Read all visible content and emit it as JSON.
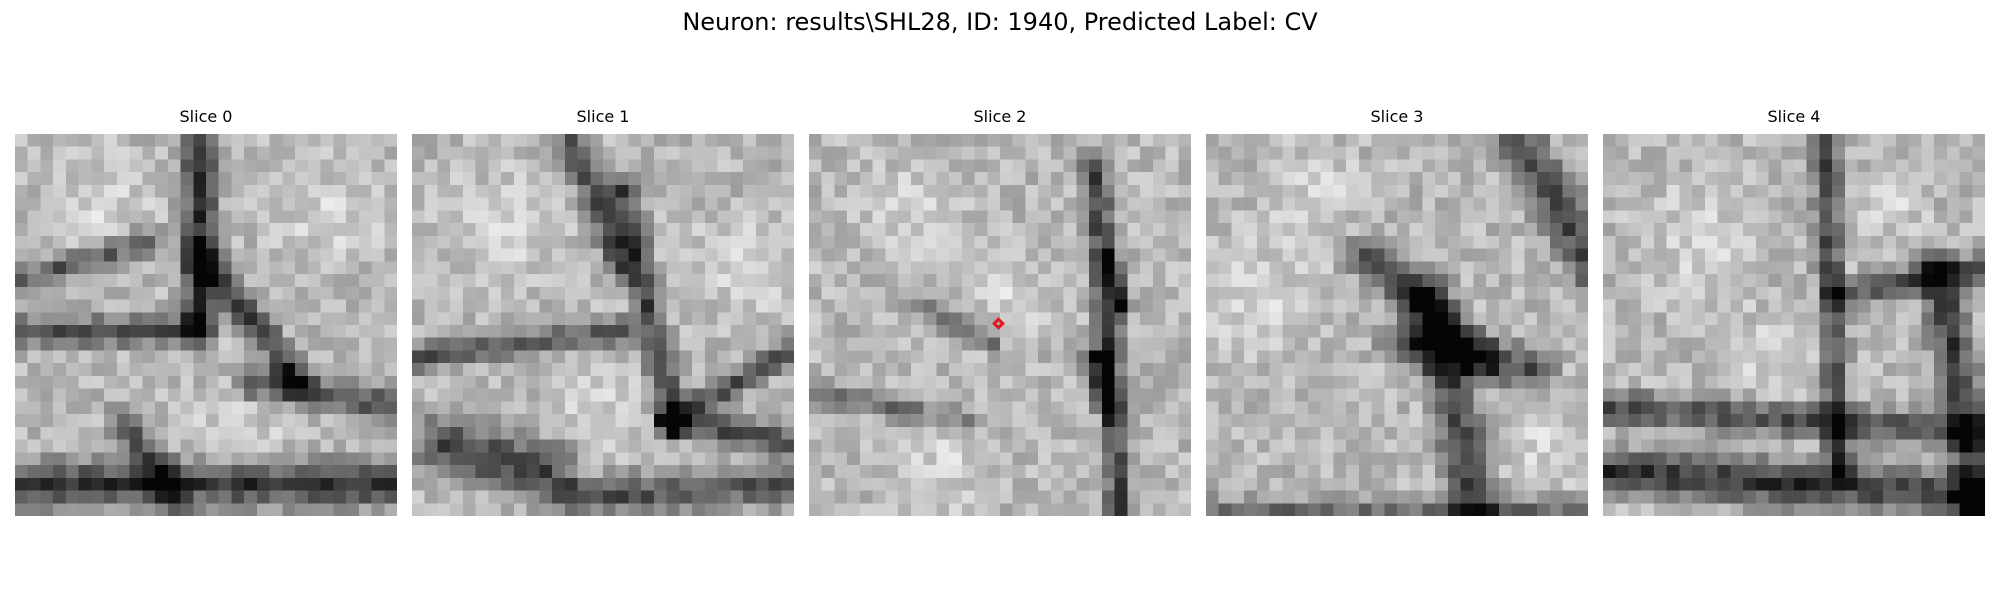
{
  "figure": {
    "title": "Neuron: results\\SHL28, ID: 1940, Predicted Label: CV"
  },
  "slices": [
    {
      "title": "Slice 0",
      "icon": "grayscale-image-slice"
    },
    {
      "title": "Slice 1",
      "icon": "grayscale-image-slice"
    },
    {
      "title": "Slice 2",
      "icon": "grayscale-image-slice",
      "has_marker": true,
      "marker_color": "#e0191e"
    },
    {
      "title": "Slice 3",
      "icon": "grayscale-image-slice"
    },
    {
      "title": "Slice 4",
      "icon": "grayscale-image-slice"
    }
  ]
}
